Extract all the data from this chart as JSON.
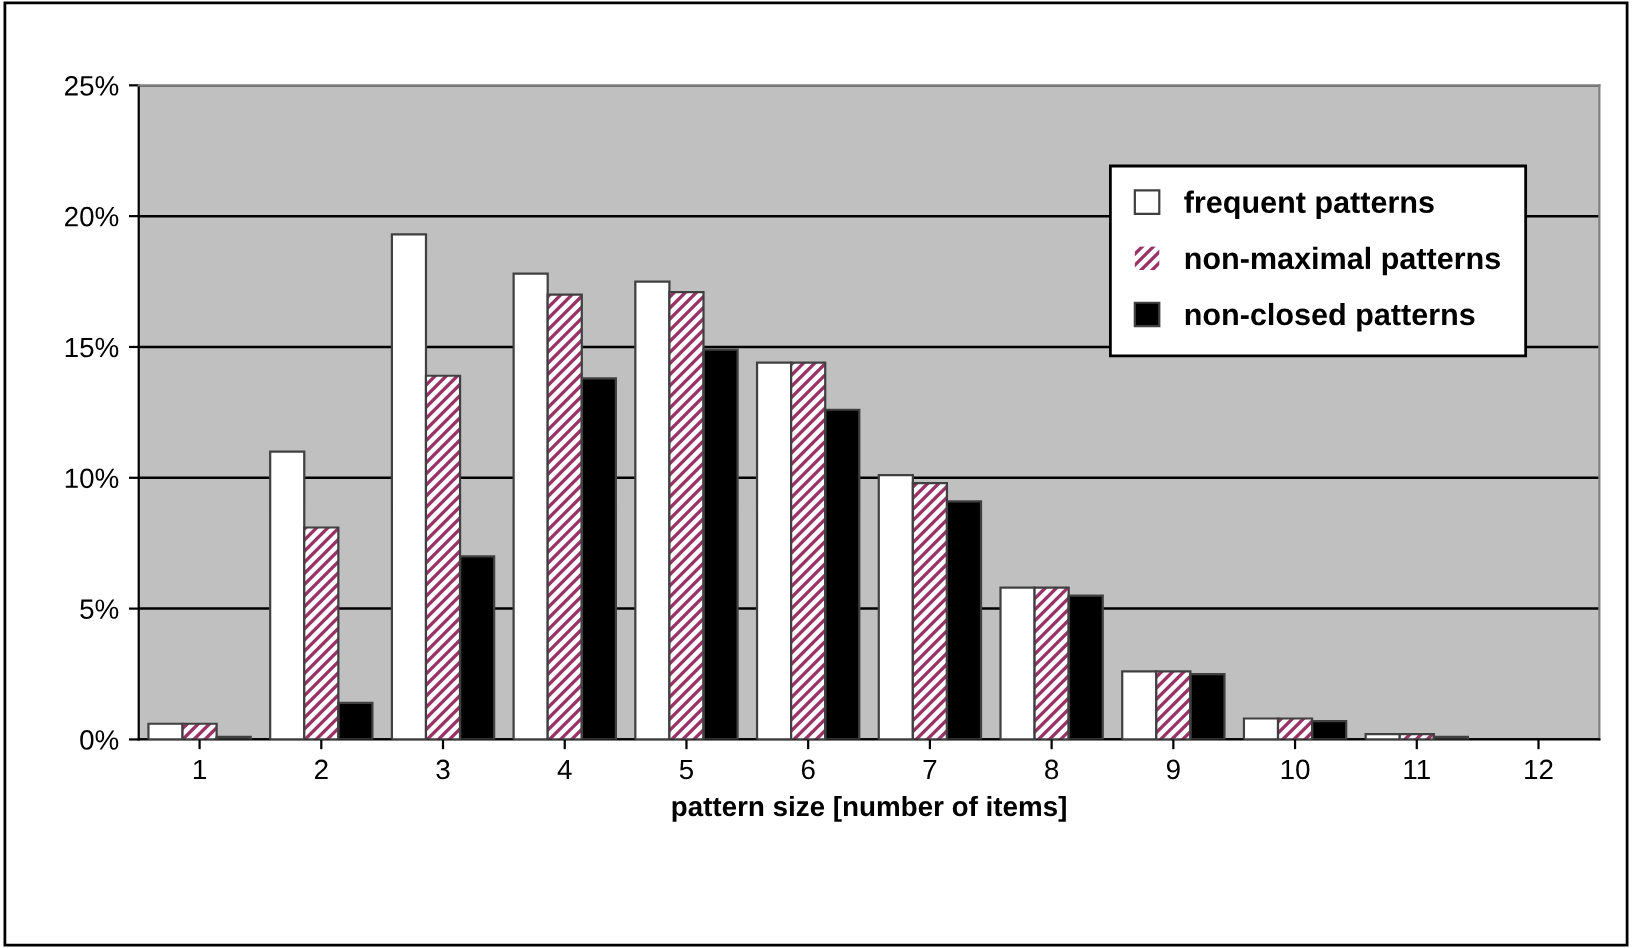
{
  "chart_data": {
    "type": "bar",
    "xlabel": "pattern size [number of items]",
    "categories": [
      "1",
      "2",
      "3",
      "4",
      "5",
      "6",
      "7",
      "8",
      "9",
      "10",
      "11",
      "12"
    ],
    "series": [
      {
        "name": "frequent patterns",
        "color": "#ffffff",
        "values": [
          0.6,
          11.0,
          19.3,
          17.8,
          17.5,
          14.4,
          10.1,
          5.8,
          2.6,
          0.8,
          0.2,
          null
        ]
      },
      {
        "name": "non-maximal patterns",
        "color": "#993366",
        "values": [
          0.6,
          8.1,
          13.9,
          17.0,
          17.1,
          14.4,
          9.8,
          5.8,
          2.6,
          0.8,
          0.2,
          null
        ]
      },
      {
        "name": "non-closed patterns",
        "color": "#000000",
        "values": [
          0.1,
          1.4,
          7.0,
          13.8,
          14.9,
          12.6,
          9.1,
          5.5,
          2.5,
          0.7,
          0.1,
          null
        ]
      }
    ],
    "ylim": [
      0,
      25
    ],
    "yticks": [
      {
        "value": 0,
        "label": "0%"
      },
      {
        "value": 5,
        "label": "5%"
      },
      {
        "value": 10,
        "label": "10%"
      },
      {
        "value": 15,
        "label": "15%"
      },
      {
        "value": 20,
        "label": "20%"
      },
      {
        "value": 25,
        "label": "25%"
      }
    ],
    "grid": "y",
    "legend": "top right"
  }
}
